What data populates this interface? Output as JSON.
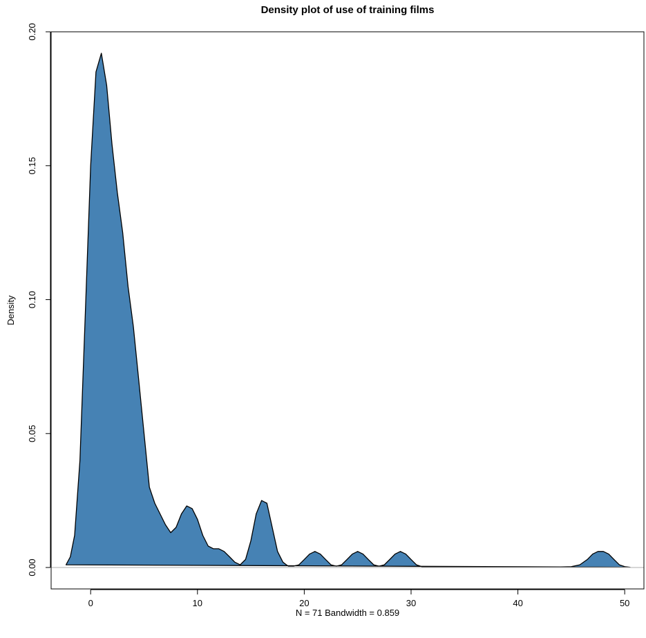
{
  "chart_data": {
    "type": "area",
    "title": "Density plot of use of training films",
    "xlabel": "N = 71   Bandwidth = 0.859",
    "ylabel": "Density",
    "xlim": [
      -3.7,
      51.8
    ],
    "ylim": [
      -0.008,
      0.2
    ],
    "x_ticks": [
      0,
      10,
      20,
      30,
      40,
      50
    ],
    "y_ticks": [
      0.0,
      0.05,
      0.1,
      0.15,
      0.2
    ],
    "y_tick_labels": [
      "0.00",
      "0.05",
      "0.10",
      "0.15",
      "0.20"
    ],
    "baseline": 0,
    "grid": false,
    "legend": "none",
    "fill_color": "#4682B4",
    "stroke_color": "#000000",
    "baseline_color": "#BEBEBE",
    "x": [
      -2.3,
      -1.9,
      -1.5,
      -1.0,
      -0.5,
      0.0,
      0.5,
      1.0,
      1.5,
      2.0,
      2.5,
      3.0,
      3.5,
      4.0,
      4.5,
      5.0,
      5.5,
      6.0,
      6.5,
      7.0,
      7.5,
      8.0,
      8.5,
      9.0,
      9.5,
      10.0,
      10.5,
      11.0,
      11.5,
      12.0,
      12.5,
      13.0,
      13.5,
      14.0,
      14.5,
      15.0,
      15.5,
      16.0,
      16.5,
      17.0,
      17.5,
      18.0,
      18.5,
      19.0,
      19.5,
      20.0,
      20.5,
      21.0,
      21.5,
      22.0,
      22.5,
      23.0,
      23.5,
      24.0,
      24.5,
      25.0,
      25.5,
      26.0,
      26.5,
      27.0,
      27.5,
      28.0,
      28.5,
      29.0,
      29.5,
      30.0,
      30.5,
      31.0,
      32.0,
      35.0,
      40.0,
      44.0,
      45.0,
      45.8,
      46.5,
      47.0,
      47.5,
      48.0,
      48.5,
      49.0,
      49.5,
      50.0,
      50.5
    ],
    "y": [
      0.001,
      0.004,
      0.012,
      0.04,
      0.095,
      0.15,
      0.185,
      0.192,
      0.18,
      0.158,
      0.14,
      0.125,
      0.105,
      0.09,
      0.07,
      0.05,
      0.03,
      0.024,
      0.02,
      0.016,
      0.013,
      0.015,
      0.02,
      0.023,
      0.022,
      0.018,
      0.012,
      0.008,
      0.007,
      0.007,
      0.006,
      0.004,
      0.002,
      0.001,
      0.003,
      0.01,
      0.02,
      0.025,
      0.024,
      0.015,
      0.006,
      0.002,
      0.0005,
      0.0005,
      0.001,
      0.003,
      0.005,
      0.006,
      0.005,
      0.003,
      0.001,
      0.0005,
      0.001,
      0.003,
      0.005,
      0.006,
      0.005,
      0.003,
      0.001,
      0.0005,
      0.001,
      0.003,
      0.005,
      0.006,
      0.005,
      0.003,
      0.001,
      0.0003,
      0.0002,
      0.0002,
      0.0002,
      0.0002,
      0.0003,
      0.001,
      0.003,
      0.005,
      0.006,
      0.006,
      0.005,
      0.003,
      0.001,
      0.0003,
      0.0001
    ]
  }
}
